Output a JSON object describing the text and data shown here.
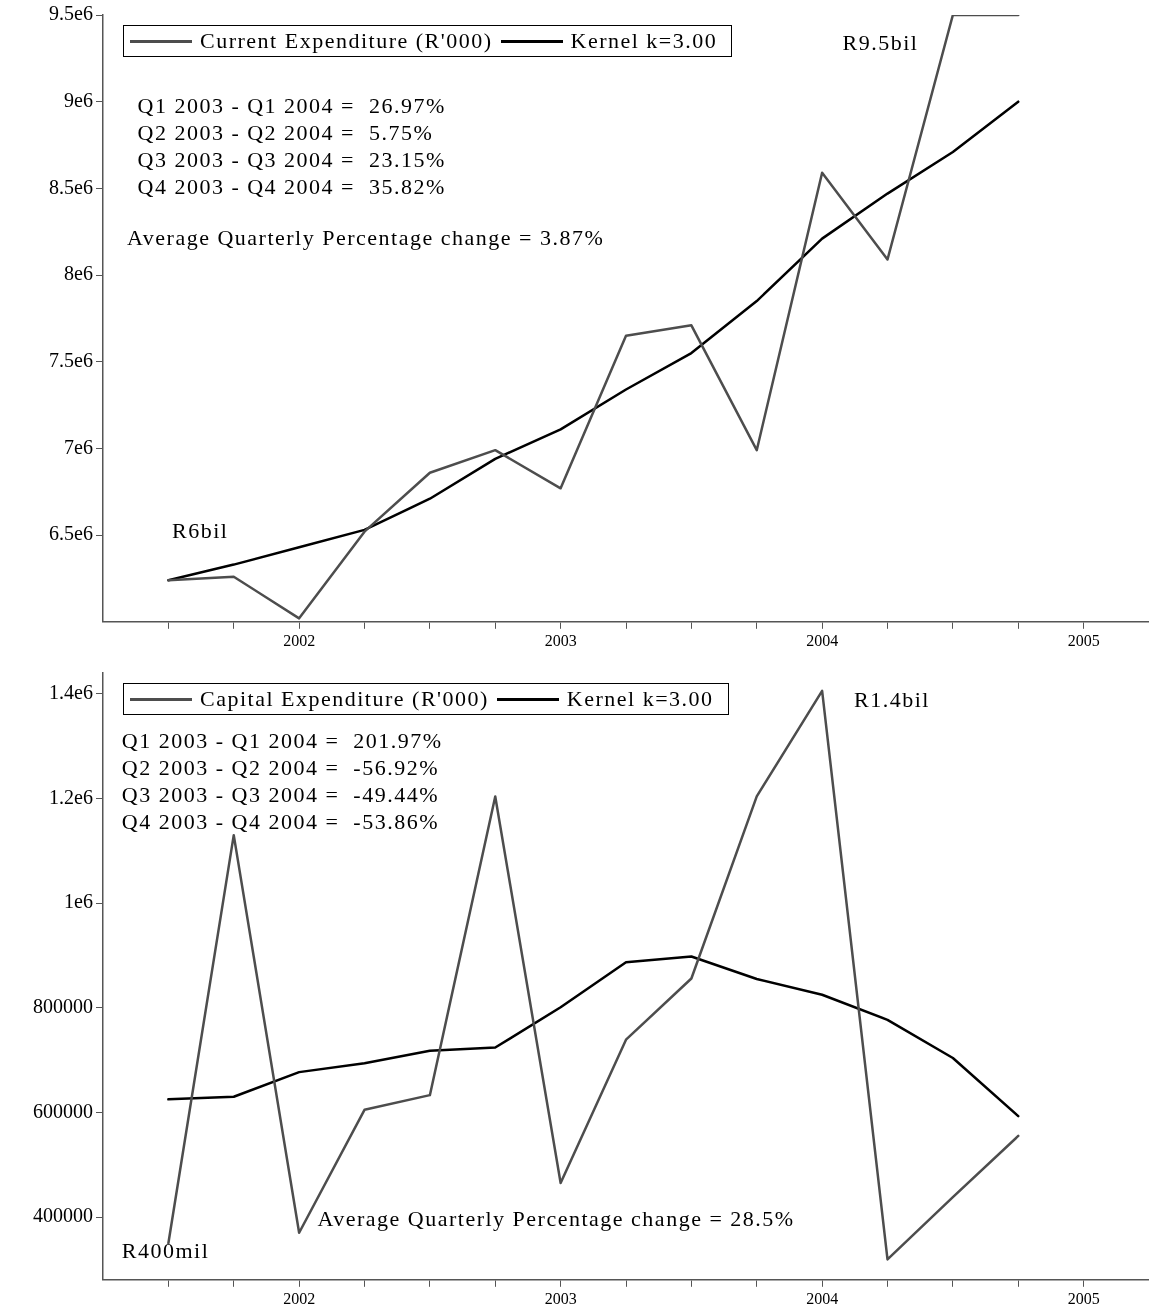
{
  "chart_data": [
    {
      "type": "line",
      "x": [
        2001.5,
        2001.75,
        2002,
        2002.25,
        2002.5,
        2002.75,
        2003,
        2003.25,
        2003.5,
        2003.75,
        2004,
        2004.25,
        2004.5,
        2004.75
      ],
      "series": [
        {
          "name": "Current Expenditure (R'000)",
          "color": "#4d4d4d",
          "values": [
            6240000,
            6260000,
            6020000,
            6520000,
            6860000,
            6990000,
            6770000,
            7650000,
            7710000,
            6990000,
            8590000,
            8090000,
            9500000,
            9500000
          ]
        },
        {
          "name": "Kernel k=3.00",
          "color": "#000000",
          "values": [
            6240000,
            6330000,
            6430000,
            6530000,
            6710000,
            6940000,
            7110000,
            7340000,
            7550000,
            7850000,
            8210000,
            8470000,
            8710000,
            9000000
          ]
        }
      ],
      "xlim": [
        2001.25,
        2005.25
      ],
      "xticks": [
        {
          "value": 2001.5,
          "label": null
        },
        {
          "value": 2001.75,
          "label": null
        },
        2002,
        {
          "value": 2002.25,
          "label": null
        },
        {
          "value": 2002.5,
          "label": null
        },
        {
          "value": 2002.75,
          "label": null
        },
        2003,
        {
          "value": 2003.25,
          "label": null
        },
        {
          "value": 2003.5,
          "label": null
        },
        {
          "value": 2003.75,
          "label": null
        },
        2004,
        {
          "value": 2004.25,
          "label": null
        },
        {
          "value": 2004.5,
          "label": null
        },
        {
          "value": 2004.75,
          "label": null
        },
        2005
      ],
      "ylim": [
        6000000,
        9500000
      ],
      "yticks": [
        {
          "value": 6500000,
          "label": "6.5e6"
        },
        {
          "value": 7000000,
          "label": "7e6"
        },
        {
          "value": 7500000,
          "label": "7.5e6"
        },
        {
          "value": 8000000,
          "label": "8e6"
        },
        {
          "value": 8500000,
          "label": "8.5e6"
        },
        {
          "value": 9000000,
          "label": "9e6"
        },
        {
          "value": 9500000,
          "label": "9.5e6"
        }
      ],
      "annotations": [
        "Q1 2003 - Q1 2004 =  26.97%",
        "Q2 2003 - Q2 2004 =  5.75%",
        "Q3 2003 - Q3 2004 =  23.15%",
        "Q4 2003 - Q4 2004 =  35.82%",
        "Average Quarterly Percentage change = 3.87%",
        "R6bil",
        "R9.5bil"
      ],
      "legend": "top left",
      "grid": false,
      "marker": "none",
      "line_style": "solid"
    },
    {
      "type": "line",
      "x": [
        2001.5,
        2001.75,
        2002,
        2002.25,
        2002.5,
        2002.75,
        2003,
        2003.25,
        2003.5,
        2003.75,
        2004,
        2004.25,
        2004.5,
        2004.75
      ],
      "series": [
        {
          "name": "Capital Expenditure (R'000)",
          "color": "#4d4d4d",
          "values": [
            350000,
            1130000,
            370000,
            605000,
            633000,
            1204000,
            465000,
            739000,
            856000,
            1204000,
            1406000,
            319000,
            438000,
            555000
          ]
        },
        {
          "name": "Kernel k=3.00",
          "color": "#000000",
          "values": [
            625000,
            630000,
            677000,
            694000,
            718000,
            724000,
            801000,
            887000,
            898000,
            855000,
            825000,
            777000,
            704000,
            593000
          ]
        }
      ],
      "xlim": [
        2001.25,
        2005.25
      ],
      "xticks": [
        {
          "value": 2001.5,
          "label": null
        },
        {
          "value": 2001.75,
          "label": null
        },
        2002,
        {
          "value": 2002.25,
          "label": null
        },
        {
          "value": 2002.5,
          "label": null
        },
        {
          "value": 2002.75,
          "label": null
        },
        2003,
        {
          "value": 2003.25,
          "label": null
        },
        {
          "value": 2003.5,
          "label": null
        },
        {
          "value": 2003.75,
          "label": null
        },
        2004,
        {
          "value": 2004.25,
          "label": null
        },
        {
          "value": 2004.5,
          "label": null
        },
        {
          "value": 2004.75,
          "label": null
        },
        2005
      ],
      "ylim": [
        280000,
        1440000
      ],
      "yticks": [
        400000,
        600000,
        800000,
        {
          "value": 1000000,
          "label": "1e6"
        },
        {
          "value": 1200000,
          "label": "1.2e6"
        },
        {
          "value": 1400000,
          "label": "1.4e6"
        }
      ],
      "annotations": [
        "Q1 2003 - Q1 2004 =  201.97%",
        "Q2 2003 - Q2 2004 =  -56.92%",
        "Q3 2003 - Q3 2004 =  -49.44%",
        "Q4 2003 - Q4 2004 =  -53.86%",
        "Average Quarterly Percentage change = 28.5%",
        "R400mil",
        "R1.4bil"
      ],
      "legend": "top left",
      "grid": false,
      "marker": "none",
      "line_style": "solid"
    }
  ]
}
